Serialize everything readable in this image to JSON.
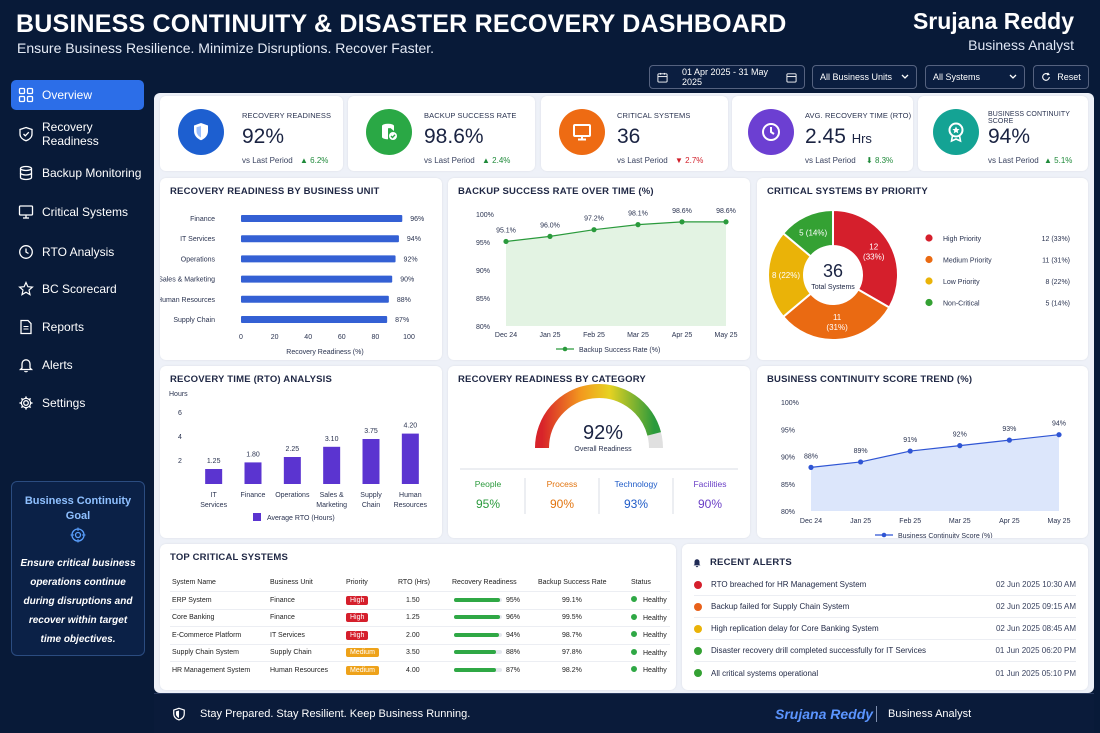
{
  "header": {
    "title": "BUSINESS CONTINUITY & DISASTER RECOVERY DASHBOARD",
    "subtitle": "Ensure Business Resilience. Minimize Disruptions. Recover Faster.",
    "user_name": "Srujana Reddy",
    "user_role": "Business Analyst"
  },
  "controls": {
    "date_range": "01 Apr 2025 - 31 May 2025",
    "business_units": "All Business Units",
    "systems": "All Systems",
    "reset": "Reset"
  },
  "sidebar": {
    "items": [
      {
        "label": "Overview",
        "icon": "grid-icon",
        "active": true
      },
      {
        "label": "Recovery Readiness",
        "icon": "shield-icon"
      },
      {
        "label": "Backup Monitoring",
        "icon": "database-icon"
      },
      {
        "label": "Critical Systems",
        "icon": "monitor-icon"
      },
      {
        "label": "RTO Analysis",
        "icon": "clock-icon"
      },
      {
        "label": "BC Scorecard",
        "icon": "star-icon"
      },
      {
        "label": "Reports",
        "icon": "document-icon"
      },
      {
        "label": "Alerts",
        "icon": "bell-icon"
      },
      {
        "label": "Settings",
        "icon": "gear-icon"
      }
    ],
    "goal_title": "Business Continuity Goal",
    "goal_text": "Ensure critical business operations continue during disruptions and recover within target time objectives."
  },
  "kpis": [
    {
      "label": "RECOVERY READINESS",
      "value": "92%",
      "unit": "",
      "compare": "vs Last Period",
      "delta": "6.2%",
      "dir": "up",
      "color": "#1d5fd0",
      "icon": "shield-icon"
    },
    {
      "label": "BACKUP SUCCESS RATE",
      "value": "98.6%",
      "unit": "",
      "compare": "vs Last Period",
      "delta": "2.4%",
      "dir": "up",
      "color": "#2aa845",
      "icon": "database-check-icon"
    },
    {
      "label": "CRITICAL SYSTEMS",
      "value": "36",
      "unit": "",
      "compare": "vs Last Period",
      "delta": "2.7%",
      "dir": "down",
      "color": "#ee6b13",
      "icon": "monitor-icon"
    },
    {
      "label": "AVG. RECOVERY TIME (RTO)",
      "value": "2.45",
      "unit": "Hrs",
      "compare": "vs Last Period",
      "delta": "8.3%",
      "dir": "down-good",
      "color": "#6c3fd2",
      "icon": "clock-icon"
    },
    {
      "label": "BUSINESS CONTINUITY SCORE",
      "value": "94%",
      "unit": "",
      "compare": "vs Last Period",
      "delta": "5.1%",
      "dir": "up",
      "color": "#14a394",
      "icon": "medal-icon"
    }
  ],
  "panels": {
    "readiness_bu": "RECOVERY READINESS BY BUSINESS UNIT",
    "backup_time": "BACKUP SUCCESS RATE OVER TIME (%)",
    "critical_priority": "CRITICAL SYSTEMS BY PRIORITY",
    "rto": "RECOVERY TIME (RTO) ANALYSIS",
    "readiness_cat": "RECOVERY READINESS BY CATEGORY",
    "bc_trend": "BUSINESS CONTINUITY SCORE TREND (%)",
    "top_systems": "TOP CRITICAL SYSTEMS",
    "alerts": "RECENT ALERTS"
  },
  "chart_data": [
    {
      "type": "bar",
      "orientation": "horizontal",
      "title": "RECOVERY READINESS BY BUSINESS UNIT",
      "categories": [
        "Finance",
        "IT Services",
        "Operations",
        "Sales & Marketing",
        "Human Resources",
        "Supply Chain"
      ],
      "values": [
        96,
        94,
        92,
        90,
        88,
        87
      ],
      "value_labels": [
        "96%",
        "94%",
        "92%",
        "90%",
        "88%",
        "87%"
      ],
      "xlabel": "Recovery Readiness (%)",
      "xlim": [
        0,
        100
      ],
      "ticks": [
        "0",
        "20",
        "40",
        "60",
        "80",
        "100"
      ]
    },
    {
      "type": "area",
      "title": "BACKUP SUCCESS RATE OVER TIME (%)",
      "categories": [
        "Dec 24",
        "Jan 25",
        "Feb 25",
        "Mar 25",
        "Apr 25",
        "May 25"
      ],
      "values": [
        95.1,
        96.0,
        97.2,
        98.1,
        98.6,
        98.6
      ],
      "value_labels": [
        "95.1%",
        "96.0%",
        "97.2%",
        "98.1%",
        "98.6%",
        "98.6%"
      ],
      "ylim": [
        80,
        100
      ],
      "ticks": [
        "80%",
        "85%",
        "90%",
        "95%",
        "100%"
      ],
      "legend": "Backup Success Rate (%)"
    },
    {
      "type": "pie",
      "title": "CRITICAL SYSTEMS BY PRIORITY",
      "center_value": "36",
      "center_label": "Total Systems",
      "slices": [
        {
          "name": "High Priority",
          "value": 12,
          "pct": "33%",
          "label": "12 (33%)",
          "color": "#d51f2c"
        },
        {
          "name": "Medium Priority",
          "value": 11,
          "pct": "31%",
          "label": "11 (31%)",
          "color": "#ea6a12"
        },
        {
          "name": "Low Priority",
          "value": 8,
          "pct": "22%",
          "label": "8 (22%)",
          "color": "#eab308"
        },
        {
          "name": "Non-Critical",
          "value": 5,
          "pct": "14%",
          "label": "5 (14%)",
          "color": "#34a133"
        }
      ]
    },
    {
      "type": "bar",
      "title": "RECOVERY TIME (RTO) ANALYSIS",
      "ylabel": "Hours",
      "categories": [
        "IT Services",
        "Finance",
        "Operations",
        "Sales & Marketing",
        "Supply Chain",
        "Human Resources"
      ],
      "values": [
        1.25,
        1.8,
        2.25,
        3.1,
        3.75,
        4.2
      ],
      "value_labels": [
        "1.25",
        "1.80",
        "2.25",
        "3.10",
        "3.75",
        "4.20"
      ],
      "ylim": [
        0,
        6
      ],
      "ticks": [
        "2",
        "4",
        "6"
      ],
      "legend": "Average RTO (Hours)"
    },
    {
      "type": "gauge",
      "title": "RECOVERY READINESS BY CATEGORY",
      "value": 92,
      "value_label": "92%",
      "label": "Overall Readiness",
      "categories": [
        {
          "name": "People",
          "value": "95%",
          "color": "#2a9a3c"
        },
        {
          "name": "Process",
          "value": "90%",
          "color": "#e2740e"
        },
        {
          "name": "Technology",
          "value": "93%",
          "color": "#1f5bc8"
        },
        {
          "name": "Facilities",
          "value": "90%",
          "color": "#6a3fc6"
        }
      ]
    },
    {
      "type": "area",
      "title": "BUSINESS CONTINUITY SCORE TREND (%)",
      "categories": [
        "Dec 24",
        "Jan 25",
        "Feb 25",
        "Mar 25",
        "Apr 25",
        "May 25"
      ],
      "values": [
        88,
        89,
        91,
        92,
        93,
        94
      ],
      "value_labels": [
        "88%",
        "89%",
        "91%",
        "92%",
        "93%",
        "94%"
      ],
      "ylim": [
        80,
        100
      ],
      "ticks": [
        "80%",
        "85%",
        "90%",
        "95%",
        "100%"
      ],
      "legend": "Business Continuity Score (%)"
    }
  ],
  "table": {
    "headers": [
      "System Name",
      "Business Unit",
      "Priority",
      "RTO (Hrs)",
      "Recovery Readiness",
      "Backup Success Rate",
      "Status"
    ],
    "rows": [
      {
        "name": "ERP System",
        "unit": "Finance",
        "priority": "High",
        "rto": "1.50",
        "readiness": 95,
        "readiness_label": "95%",
        "backup": "99.1%",
        "status": "Healthy"
      },
      {
        "name": "Core Banking",
        "unit": "Finance",
        "priority": "High",
        "rto": "1.25",
        "readiness": 96,
        "readiness_label": "96%",
        "backup": "99.5%",
        "status": "Healthy"
      },
      {
        "name": "E-Commerce Platform",
        "unit": "IT Services",
        "priority": "High",
        "rto": "2.00",
        "readiness": 94,
        "readiness_label": "94%",
        "backup": "98.7%",
        "status": "Healthy"
      },
      {
        "name": "Supply Chain System",
        "unit": "Supply Chain",
        "priority": "Medium",
        "rto": "3.50",
        "readiness": 88,
        "readiness_label": "88%",
        "backup": "97.8%",
        "status": "Healthy"
      },
      {
        "name": "HR Management System",
        "unit": "Human Resources",
        "priority": "Medium",
        "rto": "4.00",
        "readiness": 87,
        "readiness_label": "87%",
        "backup": "98.2%",
        "status": "Healthy"
      }
    ]
  },
  "alerts": [
    {
      "text": "RTO breached for HR Management System",
      "date": "02 Jun 2025",
      "time": "10:30 AM",
      "color": "#d51f2c"
    },
    {
      "text": "Backup failed for Supply Chain System",
      "date": "02 Jun 2025",
      "time": "09:15 AM",
      "color": "#e8611a"
    },
    {
      "text": "High replication delay for Core Banking System",
      "date": "02 Jun 2025",
      "time": "08:45 AM",
      "color": "#eab308"
    },
    {
      "text": "Disaster recovery drill completed successfully for IT Services",
      "date": "01 Jun 2025",
      "time": "06:20 PM",
      "color": "#34a133"
    },
    {
      "text": "All critical systems operational",
      "date": "01 Jun 2025",
      "time": "05:10 PM",
      "color": "#34a133"
    }
  ],
  "footer": {
    "tagline": "Stay Prepared. Stay Resilient. Keep Business Running.",
    "name": "Srujana Reddy",
    "role": "Business Analyst"
  }
}
